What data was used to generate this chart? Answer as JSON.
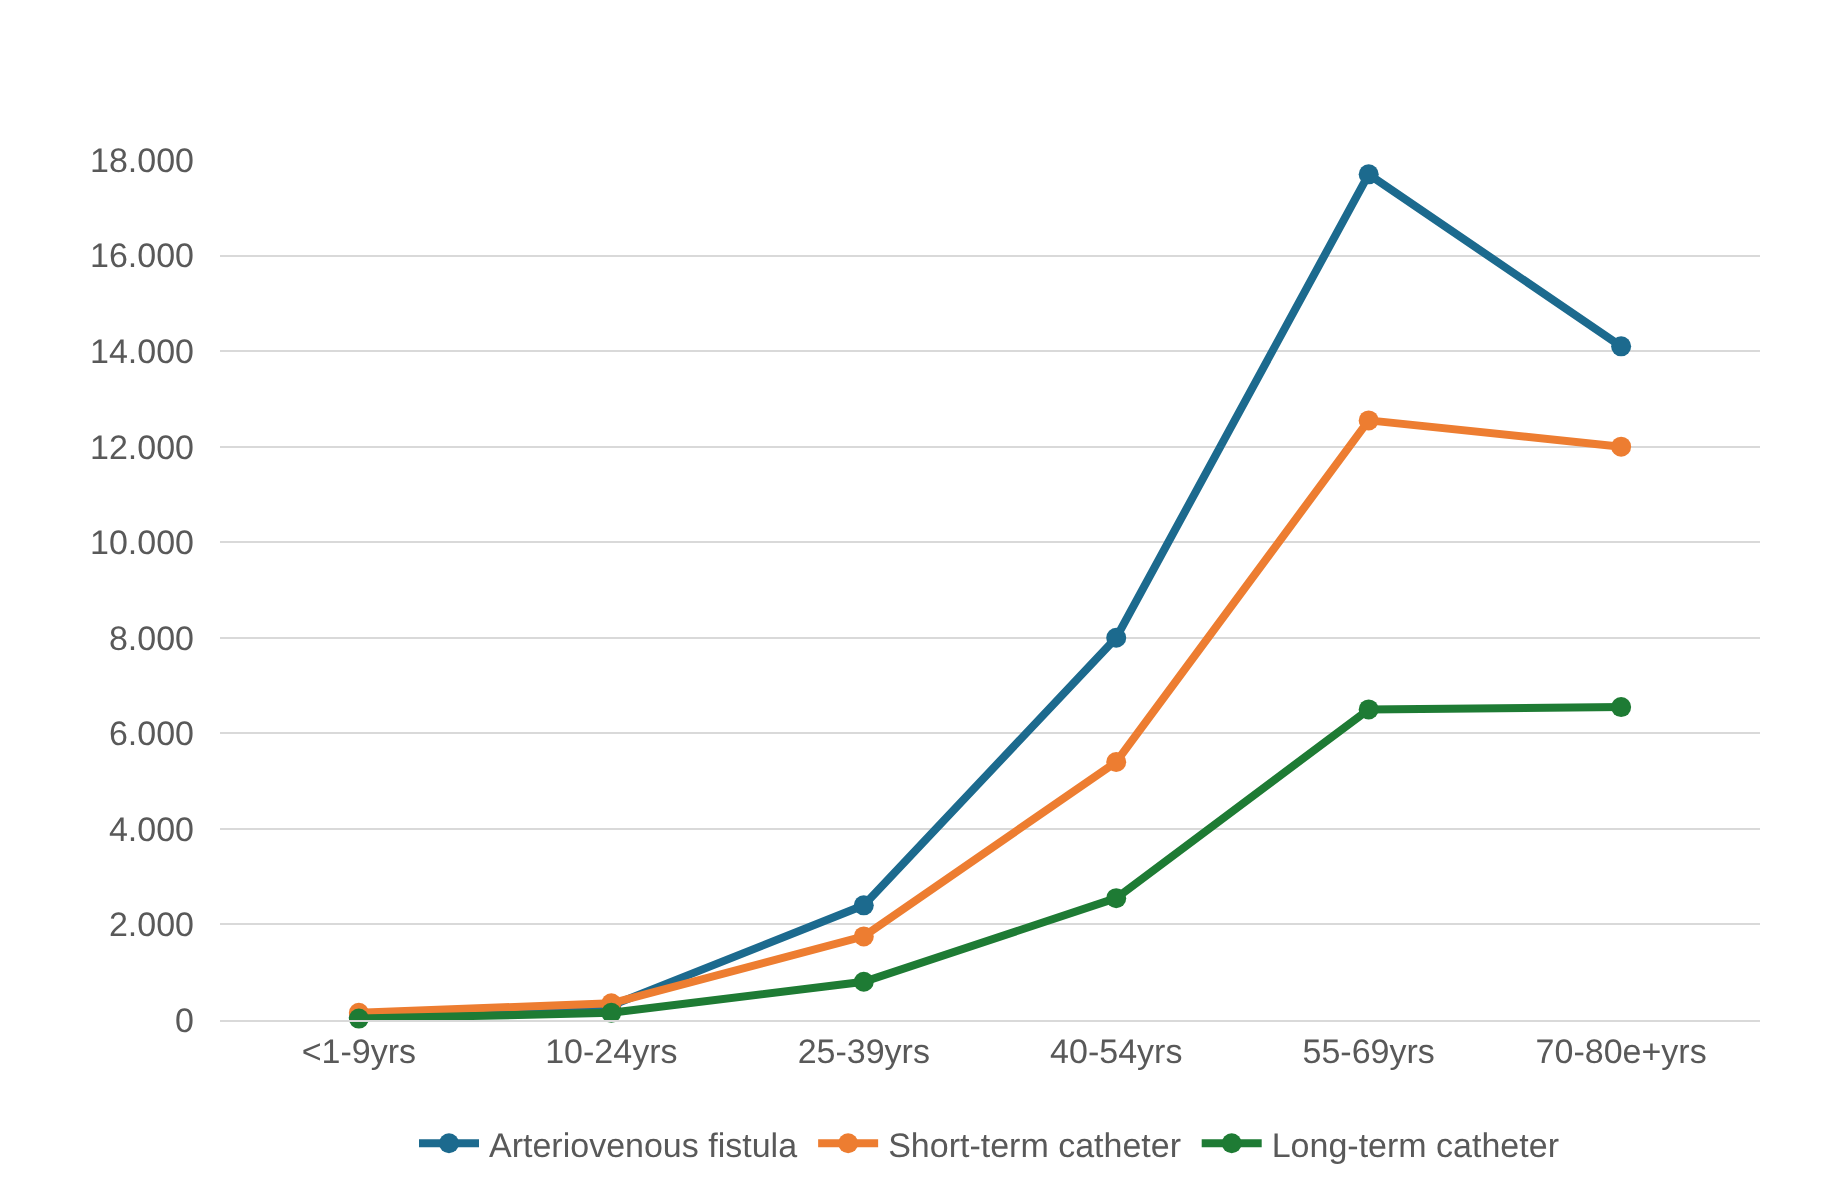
{
  "chart_data": {
    "type": "line",
    "categories": [
      "<1-9yrs",
      "10-24yrs",
      "25-39yrs",
      "40-54yrs",
      "55-69yrs",
      "70-80e+yrs"
    ],
    "series": [
      {
        "name": "Arteriovenous fistula",
        "color": "#1c6a8e",
        "values": [
          50,
          300,
          2400,
          8000,
          17700,
          14100
        ]
      },
      {
        "name": "Short-term catheter",
        "color": "#ed7d31",
        "values": [
          150,
          350,
          1750,
          5400,
          12550,
          12000
        ]
      },
      {
        "name": "Long-term catheter",
        "color": "#1e7b34",
        "values": [
          30,
          150,
          800,
          2550,
          6500,
          6550
        ]
      }
    ],
    "ylim": [
      0,
      18000
    ],
    "yticks": [
      0,
      {
        "value": 2000,
        "label": "2.000"
      },
      {
        "value": 4000,
        "label": "4.000"
      },
      {
        "value": 6000,
        "label": "6.000"
      },
      {
        "value": 8000,
        "label": "8.000"
      },
      {
        "value": 10000,
        "label": "10.000"
      },
      {
        "value": 12000,
        "label": "12.000"
      },
      {
        "value": 14000,
        "label": "14.000"
      },
      {
        "value": 16000,
        "label": "16.000"
      },
      {
        "value": 18000,
        "label": "18.000"
      }
    ],
    "grid": "y",
    "legend": "bottom",
    "marker": "circle",
    "line_style": "solid"
  }
}
